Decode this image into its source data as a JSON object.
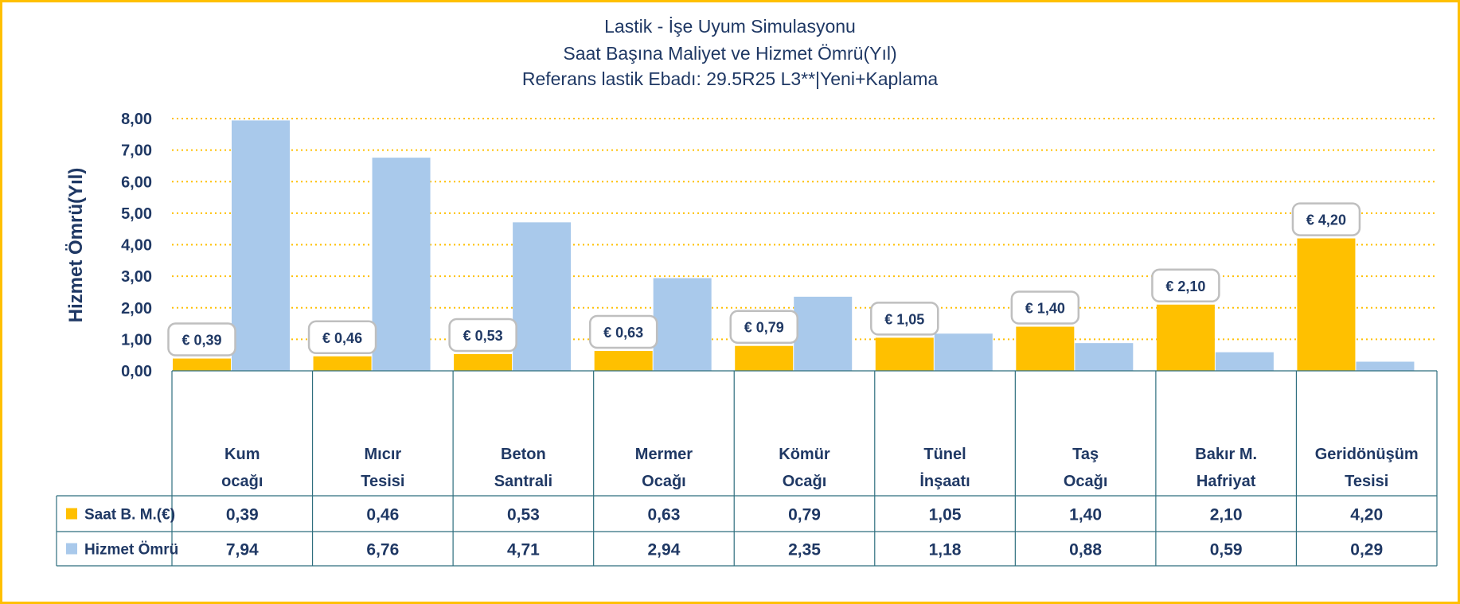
{
  "colors": {
    "cost": "#FFC000",
    "life": "#A9C9EB",
    "text": "#1F3864",
    "grid": "#FFC000",
    "table_border": "#2E6E7E",
    "frame": "#FFC000"
  },
  "chart_data": {
    "type": "bar",
    "title_lines": [
      "Lastik - İşe Uyum Simulasyonu",
      "Saat Başına Maliyet ve Hizmet Ömrü(Yıl)",
      "Referans lastik Ebadı: 29.5R25 L3**|Yeni+Kaplama"
    ],
    "ylabel": "Hizmet Ömrü(Yıl)",
    "ylim": [
      0,
      8
    ],
    "yticks": [
      "0,00",
      "1,00",
      "2,00",
      "3,00",
      "4,00",
      "5,00",
      "6,00",
      "7,00",
      "8,00"
    ],
    "grid": true,
    "categories": [
      [
        "Kum",
        "ocağı"
      ],
      [
        "Mıcır",
        "Tesisi"
      ],
      [
        "Beton",
        "Santrali"
      ],
      [
        "Mermer",
        "Ocağı"
      ],
      [
        "Kömür",
        "Ocağı"
      ],
      [
        "Tünel",
        "İnşaatı"
      ],
      [
        "Taş",
        "Ocağı"
      ],
      [
        "Bakır M.",
        "Hafriyat"
      ],
      [
        "Geridönüşüm",
        "Tesisi"
      ]
    ],
    "series": [
      {
        "name": "Saat B. M.(€)",
        "values": [
          0.39,
          0.46,
          0.53,
          0.63,
          0.79,
          1.05,
          1.4,
          2.1,
          4.2
        ],
        "table_labels": [
          "0,39",
          "0,46",
          "0,53",
          "0,63",
          "0,79",
          "1,05",
          "1,40",
          "2,10",
          "4,20"
        ],
        "data_labels": [
          "€ 0,39",
          "€ 0,46",
          "€ 0,53",
          "€ 0,63",
          "€ 0,79",
          "€ 1,05",
          "€ 1,40",
          "€ 2,10",
          "€ 4,20"
        ]
      },
      {
        "name": "Hizmet Ömrü",
        "values": [
          7.94,
          6.76,
          4.71,
          2.94,
          2.35,
          1.18,
          0.88,
          0.59,
          0.29
        ],
        "table_labels": [
          "7,94",
          "6,76",
          "4,71",
          "2,94",
          "2,35",
          "1,18",
          "0,88",
          "0,59",
          "0,29"
        ]
      }
    ]
  }
}
